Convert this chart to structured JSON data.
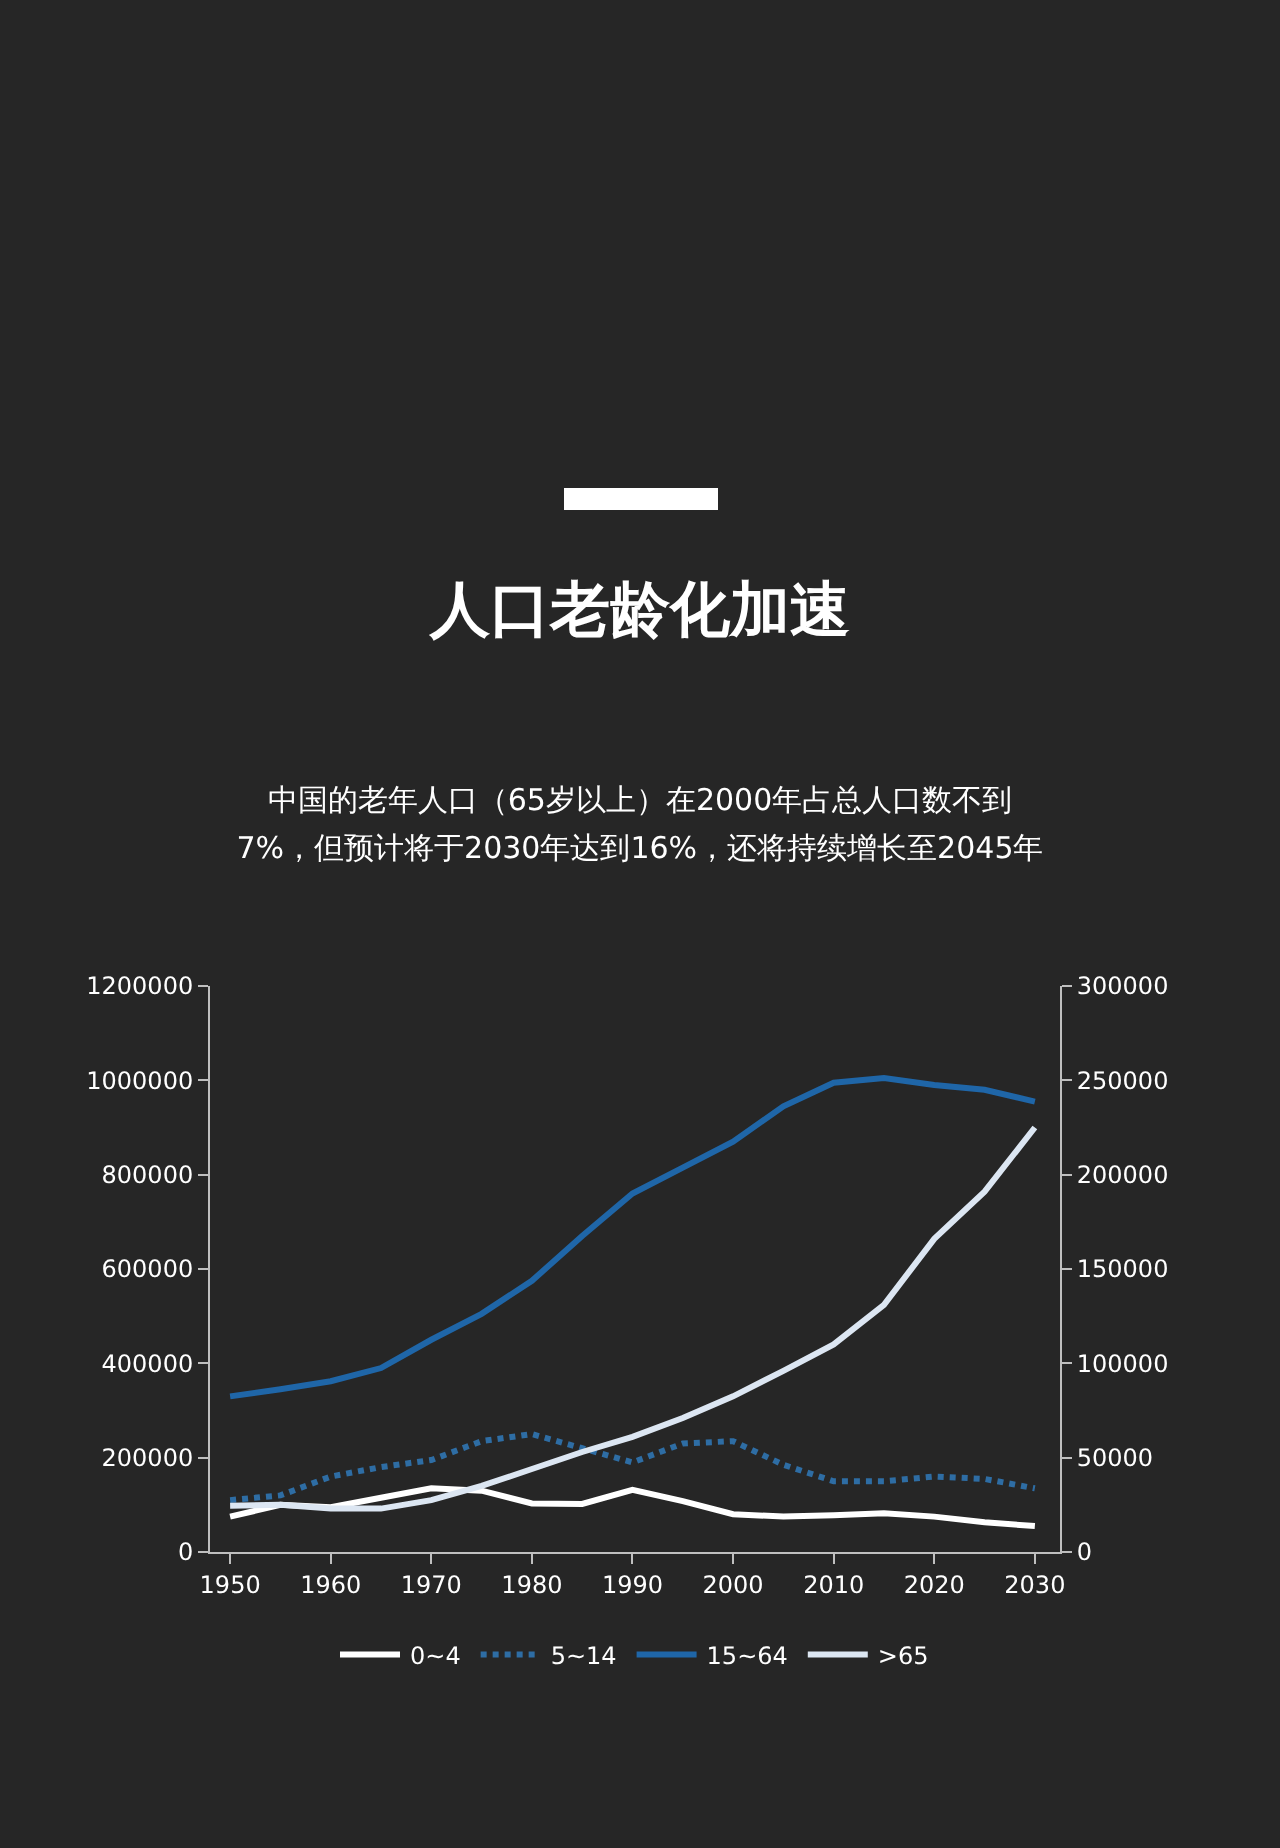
{
  "chart_data": {
    "type": "line",
    "title": "人口老龄化加速",
    "subtitle": "中国的老年人口（65岁以上）在2000年占总人口数不到7%，但预计将于2030年达到16%，还将持续增长至2045年",
    "x": [
      1950,
      1955,
      1960,
      1965,
      1970,
      1975,
      1980,
      1985,
      1990,
      1995,
      2000,
      2005,
      2010,
      2015,
      2020,
      2025,
      2030
    ],
    "series": [
      {
        "name": "0~4",
        "color": "#ffffff",
        "line_style": "solid",
        "values": [
          75000,
          100000,
          95000,
          115000,
          135000,
          130000,
          103000,
          102000,
          132000,
          108000,
          80000,
          75000,
          78000,
          82000,
          75000,
          63000,
          55000
        ]
      },
      {
        "name": "5~14",
        "color": "#2e6da4",
        "line_style": "dotted",
        "values": [
          110000,
          120000,
          160000,
          180000,
          195000,
          235000,
          250000,
          220000,
          190000,
          230000,
          235000,
          185000,
          150000,
          150000,
          160000,
          155000,
          135000
        ]
      },
      {
        "name": "15~64",
        "color": "#1f66a8",
        "line_style": "solid",
        "values": [
          330000,
          345000,
          362000,
          390000,
          450000,
          505000,
          575000,
          670000,
          760000,
          815000,
          870000,
          945000,
          995000,
          1005000,
          990000,
          980000,
          955000
        ]
      },
      {
        "name": ">65",
        "color": "#dce6f2",
        "line_style": "solid",
        "axis": "y2",
        "values": [
          24500,
          25000,
          23000,
          23000,
          27500,
          35000,
          44000,
          53000,
          61000,
          71000,
          82500,
          96000,
          110000,
          131000,
          166000,
          191000,
          225000
        ]
      }
    ],
    "xlim": [
      1948,
      2032.5
    ],
    "xticks": [
      1950,
      1960,
      1970,
      1980,
      1990,
      2000,
      2010,
      2020,
      2030
    ],
    "ylim": [
      0,
      1200000
    ],
    "yticks": [
      0,
      200000,
      400000,
      600000,
      800000,
      1000000,
      1200000
    ],
    "y2lim": [
      0,
      300000
    ],
    "y2ticks": [
      0,
      50000,
      100000,
      150000,
      200000,
      250000,
      300000
    ],
    "grid": false,
    "legend": "bottom",
    "marker": "none"
  }
}
